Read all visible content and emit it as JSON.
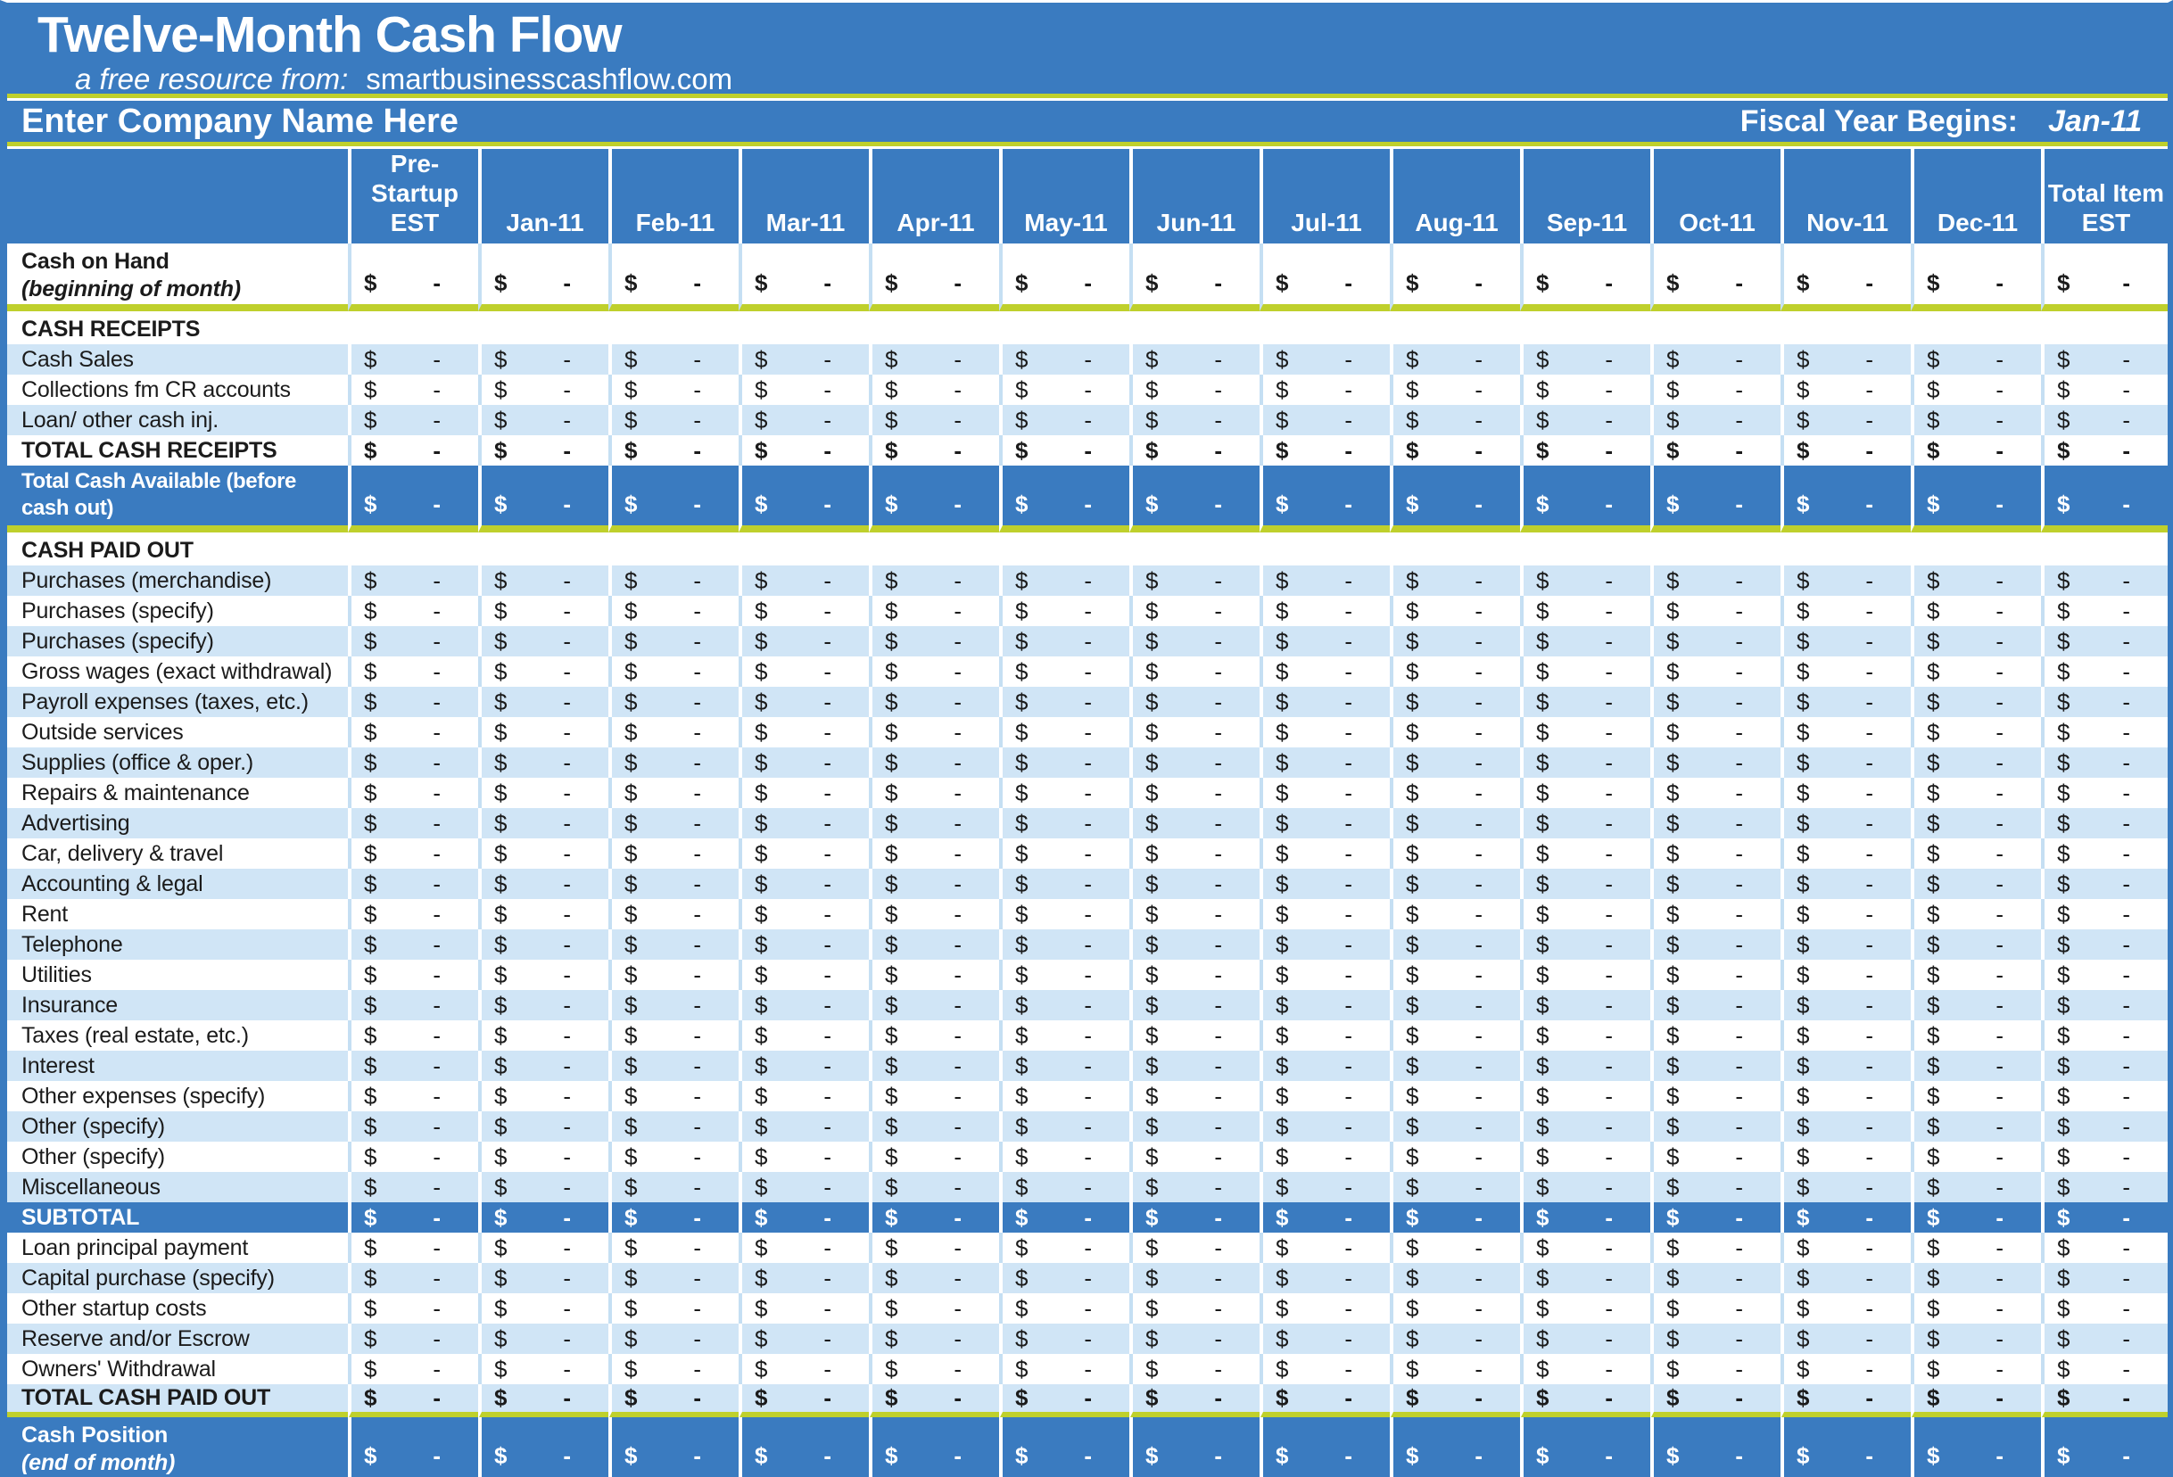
{
  "header": {
    "title": "Twelve-Month Cash Flow",
    "subtitle_prefix": "a free resource from:",
    "subtitle_domain": "smartbusinesscashflow.com",
    "company_name": "Enter Company Name Here",
    "fiscal_label": "Fiscal Year Begins:",
    "fiscal_value": "Jan-11"
  },
  "colors": {
    "band_blue": "#3a7bc0",
    "light_blue_row": "#d0e5f6",
    "accent_green_rule": "#bfd02c",
    "gridline_on_white": "#c5dff3"
  },
  "columns": [
    "Pre-\nStartup\nEST",
    "Jan-11",
    "Feb-11",
    "Mar-11",
    "Apr-11",
    "May-11",
    "Jun-11",
    "Jul-11",
    "Aug-11",
    "Sep-11",
    "Oct-11",
    "Nov-11",
    "Dec-11",
    "Total Item\nEST"
  ],
  "cell_format": {
    "currency_symbol": "$",
    "empty_value": "-"
  },
  "rows": [
    {
      "label": "Cash on Hand",
      "sublabel": "(beginning of month)",
      "shade": "white",
      "bold": true,
      "rule": true,
      "tall": "carry"
    },
    {
      "label": "CASH RECEIPTS",
      "shade": "white",
      "section": true
    },
    {
      "label": "Cash Sales",
      "shade": "light"
    },
    {
      "label": "Collections fm CR accounts",
      "shade": "white"
    },
    {
      "label": "Loan/ other cash inj.",
      "shade": "light"
    },
    {
      "label": "TOTAL CASH RECEIPTS",
      "shade": "white",
      "bold": true
    },
    {
      "label": "Total Cash Available (before cash out)",
      "shade": "blue",
      "bold": true,
      "rule": true,
      "tall": "avail"
    },
    {
      "label": "CASH PAID OUT",
      "shade": "white",
      "section": true
    },
    {
      "label": "Purchases (merchandise)",
      "shade": "light"
    },
    {
      "label": "Purchases (specify)",
      "shade": "white"
    },
    {
      "label": "Purchases (specify)",
      "shade": "light"
    },
    {
      "label": "Gross wages (exact withdrawal)",
      "shade": "white"
    },
    {
      "label": "Payroll expenses (taxes, etc.)",
      "shade": "light"
    },
    {
      "label": "Outside services",
      "shade": "white"
    },
    {
      "label": "Supplies (office & oper.)",
      "shade": "light"
    },
    {
      "label": "Repairs & maintenance",
      "shade": "white"
    },
    {
      "label": "Advertising",
      "shade": "light"
    },
    {
      "label": "Car, delivery & travel",
      "shade": "white"
    },
    {
      "label": "Accounting & legal",
      "shade": "light"
    },
    {
      "label": "Rent",
      "shade": "white"
    },
    {
      "label": "Telephone",
      "shade": "light"
    },
    {
      "label": "Utilities",
      "shade": "white"
    },
    {
      "label": "Insurance",
      "shade": "light"
    },
    {
      "label": "Taxes (real estate, etc.)",
      "shade": "white"
    },
    {
      "label": "Interest",
      "shade": "light"
    },
    {
      "label": "Other expenses (specify)",
      "shade": "white"
    },
    {
      "label": "Other (specify)",
      "shade": "light"
    },
    {
      "label": "Other (specify)",
      "shade": "white"
    },
    {
      "label": "Miscellaneous",
      "shade": "light"
    },
    {
      "label": "SUBTOTAL",
      "shade": "blue",
      "bold": true
    },
    {
      "label": "Loan principal payment",
      "shade": "white"
    },
    {
      "label": "Capital purchase (specify)",
      "shade": "light"
    },
    {
      "label": "Other startup costs",
      "shade": "white"
    },
    {
      "label": "Reserve and/or Escrow",
      "shade": "light"
    },
    {
      "label": "Owners' Withdrawal",
      "shade": "white"
    },
    {
      "label": "TOTAL CASH PAID OUT",
      "shade": "light",
      "bold": true,
      "rule": true
    },
    {
      "label": "Cash Position",
      "sublabel": "(end of month)",
      "shade": "blue",
      "bold": true,
      "tall": "pos"
    }
  ]
}
